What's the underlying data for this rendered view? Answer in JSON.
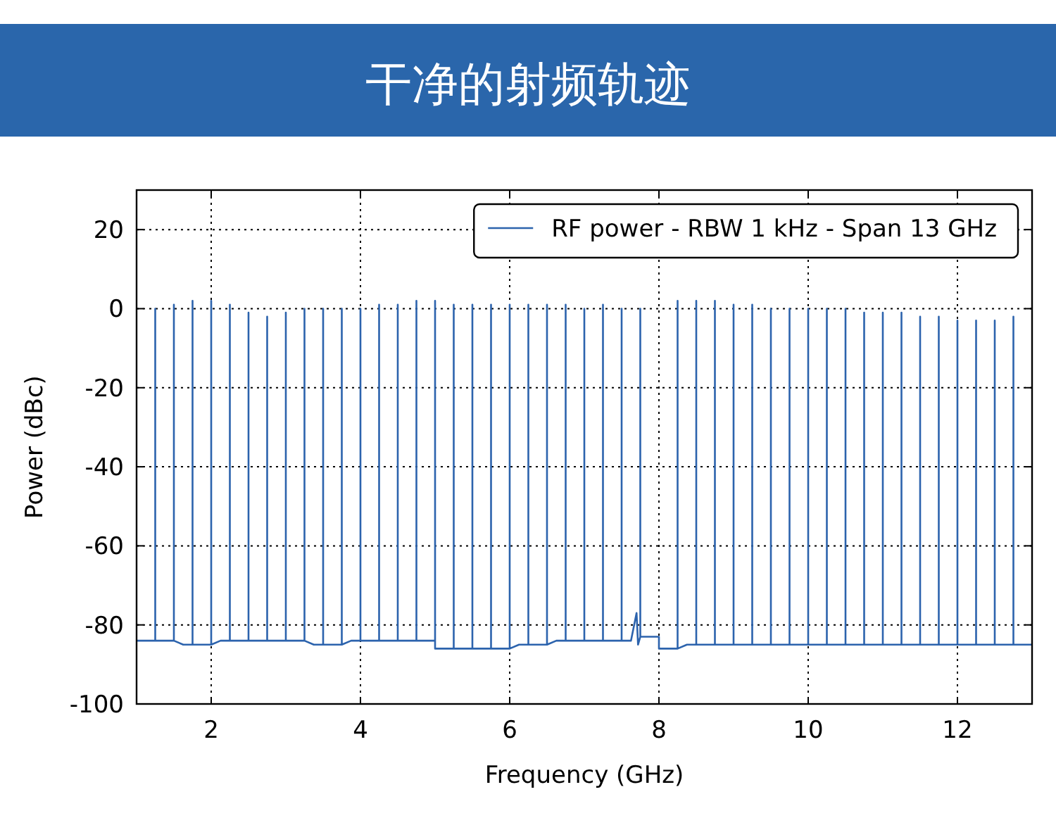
{
  "chart_data": {
    "type": "line",
    "title": "干净的射频轨迹",
    "xlabel": "Frequency (GHz)",
    "ylabel": "Power (dBc)",
    "xlim": [
      1,
      13
    ],
    "ylim": [
      -100,
      30
    ],
    "xticks": [
      2,
      4,
      6,
      8,
      10,
      12
    ],
    "yticks": [
      -100,
      -80,
      -60,
      -40,
      -20,
      0,
      20
    ],
    "grid": true,
    "legend": "top right",
    "x": [
      1,
      1.25,
      1.25,
      1.25,
      1.375,
      1.5,
      1.5,
      1.5,
      1.625,
      1.75,
      1.75,
      1.75,
      1.875,
      2,
      2,
      2,
      2.125,
      2.25,
      2.25,
      2.25,
      2.375,
      2.5,
      2.5,
      2.5,
      2.625,
      2.75,
      2.75,
      2.75,
      2.875,
      3,
      3,
      3,
      3.125,
      3.25,
      3.25,
      3.25,
      3.375,
      3.5,
      3.5,
      3.5,
      3.625,
      3.75,
      3.75,
      3.75,
      3.875,
      4,
      4,
      4,
      4.125,
      4.25,
      4.25,
      4.25,
      4.375,
      4.5,
      4.5,
      4.5,
      4.625,
      4.75,
      4.75,
      4.75,
      4.875,
      5,
      5,
      5,
      5.125,
      5.25,
      5.25,
      5.25,
      5.375,
      5.5,
      5.5,
      5.5,
      5.625,
      5.75,
      5.75,
      5.75,
      5.875,
      6,
      6,
      6,
      6.125,
      6.25,
      6.25,
      6.25,
      6.375,
      6.5,
      6.5,
      6.5,
      6.625,
      6.75,
      6.75,
      6.75,
      6.875,
      7,
      7,
      7,
      7.125,
      7.25,
      7.25,
      7.25,
      7.375,
      7.5,
      7.5,
      7.5,
      7.625,
      7.7,
      7.72,
      7.75,
      7.75,
      7.75,
      7.875,
      8,
      8,
      8.25,
      8.25,
      8.25,
      8.375,
      8.5,
      8.5,
      8.5,
      8.625,
      8.75,
      8.75,
      8.75,
      8.875,
      9,
      9,
      9,
      9.125,
      9.25,
      9.25,
      9.25,
      9.375,
      9.5,
      9.5,
      9.5,
      9.625,
      9.75,
      9.75,
      9.75,
      9.875,
      10,
      10,
      10,
      10.125,
      10.25,
      10.25,
      10.25,
      10.375,
      10.5,
      10.5,
      10.5,
      10.625,
      10.75,
      10.75,
      10.75,
      10.875,
      11,
      11,
      11,
      11.125,
      11.25,
      11.25,
      11.25,
      11.375,
      11.5,
      11.5,
      11.5,
      11.625,
      11.75,
      11.75,
      11.75,
      11.875,
      12,
      12,
      12,
      12.125,
      12.25,
      12.25,
      12.25,
      12.375,
      12.5,
      12.5,
      12.5,
      12.625,
      12.75,
      12.75,
      12.75,
      13
    ],
    "series": [
      {
        "name": "RF power - RBW 1 kHz - Span 13 GHz",
        "color": "#2c63ad",
        "values": [
          -84,
          -84,
          0,
          -84,
          -84,
          -84,
          1,
          -84,
          -85,
          -85,
          2,
          -85,
          -85,
          -85,
          2,
          -85,
          -84,
          -84,
          1,
          -84,
          -84,
          -84,
          -1,
          -84,
          -84,
          -84,
          -2,
          -84,
          -84,
          -84,
          -1,
          -84,
          -84,
          -84,
          0,
          -84,
          -85,
          -85,
          0,
          -85,
          -85,
          -85,
          0,
          -85,
          -84,
          -84,
          0,
          -84,
          -84,
          -84,
          1,
          -84,
          -84,
          -84,
          1,
          -84,
          -84,
          -84,
          2,
          -84,
          -84,
          -84,
          2,
          -86,
          -86,
          -86,
          1,
          -86,
          -86,
          -86,
          1,
          -86,
          -86,
          -86,
          1,
          -86,
          -86,
          -86,
          1,
          -86,
          -85,
          -85,
          1,
          -85,
          -85,
          -85,
          1,
          -85,
          -84,
          -84,
          1,
          -84,
          -84,
          -84,
          0,
          -84,
          -84,
          -84,
          1,
          -84,
          -84,
          -84,
          0,
          -84,
          -84,
          -77,
          -85,
          -83,
          0,
          -83,
          -83,
          -83,
          -86,
          -86,
          2,
          -86,
          -85,
          -85,
          2,
          -85,
          -85,
          -85,
          2,
          -85,
          -85,
          -85,
          1,
          -85,
          -85,
          -85,
          1,
          -85,
          -85,
          -85,
          0,
          -85,
          -85,
          -85,
          0,
          -85,
          -85,
          -85,
          0,
          -85,
          -85,
          -85,
          0,
          -85,
          -85,
          -85,
          0,
          -85,
          -85,
          -85,
          -1,
          -85,
          -85,
          -85,
          -1,
          -85,
          -85,
          -85,
          -1,
          -85,
          -85,
          -85,
          -2,
          -85,
          -85,
          -85,
          -2,
          -85,
          -85,
          -85,
          -3,
          -85,
          -85,
          -85,
          -3,
          -85,
          -85,
          -85,
          -3,
          -85,
          -85,
          -85,
          -2,
          -85,
          -85
        ]
      }
    ]
  }
}
